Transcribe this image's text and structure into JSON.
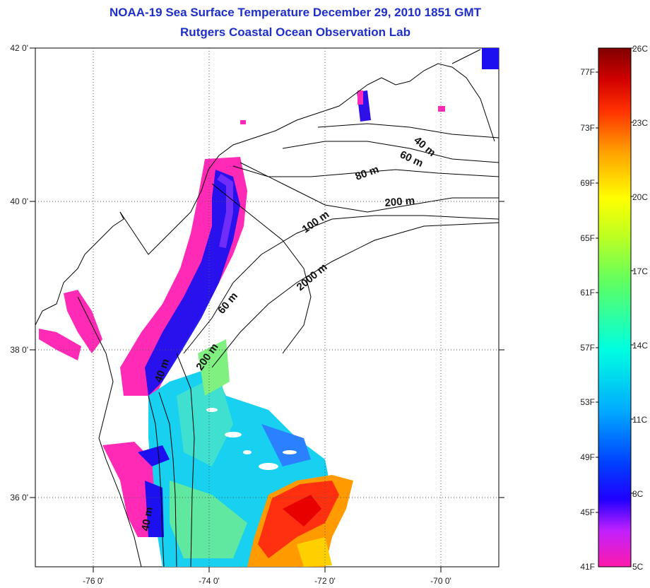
{
  "title": "NOAA-19 Sea Surface Temperature December 29, 2010 1851 GMT",
  "subtitle": "Rutgers Coastal Ocean Observation Lab",
  "map": {
    "lat_labels": [
      "42 0'",
      "40 0'",
      "38 0'",
      "36 0'"
    ],
    "lon_labels": [
      "-76 0'",
      "-74 0'",
      "-72 0'",
      "-70 0'"
    ],
    "lat_range": [
      35,
      42
    ],
    "lon_range": [
      -77,
      -69
    ],
    "isobaths": [
      "40 m",
      "60 m",
      "80 m",
      "200 m",
      "100 m",
      "2000 m",
      "60 m",
      "200 m",
      "40 m",
      "40 m"
    ]
  },
  "colorbar": {
    "celsius_labels": [
      "26C",
      "23C",
      "20C",
      "17C",
      "14C",
      "11C",
      "8C",
      "5C"
    ],
    "fahrenheit_labels": [
      "77F",
      "73F",
      "69F",
      "65F",
      "61F",
      "57F",
      "53F",
      "49F",
      "45F",
      "41F"
    ],
    "range_c": [
      5,
      26
    ],
    "colors": [
      "#ff00ff",
      "#c040ff",
      "#7020ff",
      "#0000ff",
      "#00aaff",
      "#00ffff",
      "#40ff90",
      "#b0ff30",
      "#ffff00",
      "#ffb000",
      "#ff6000",
      "#ff0000",
      "#c00000",
      "#800000"
    ]
  }
}
